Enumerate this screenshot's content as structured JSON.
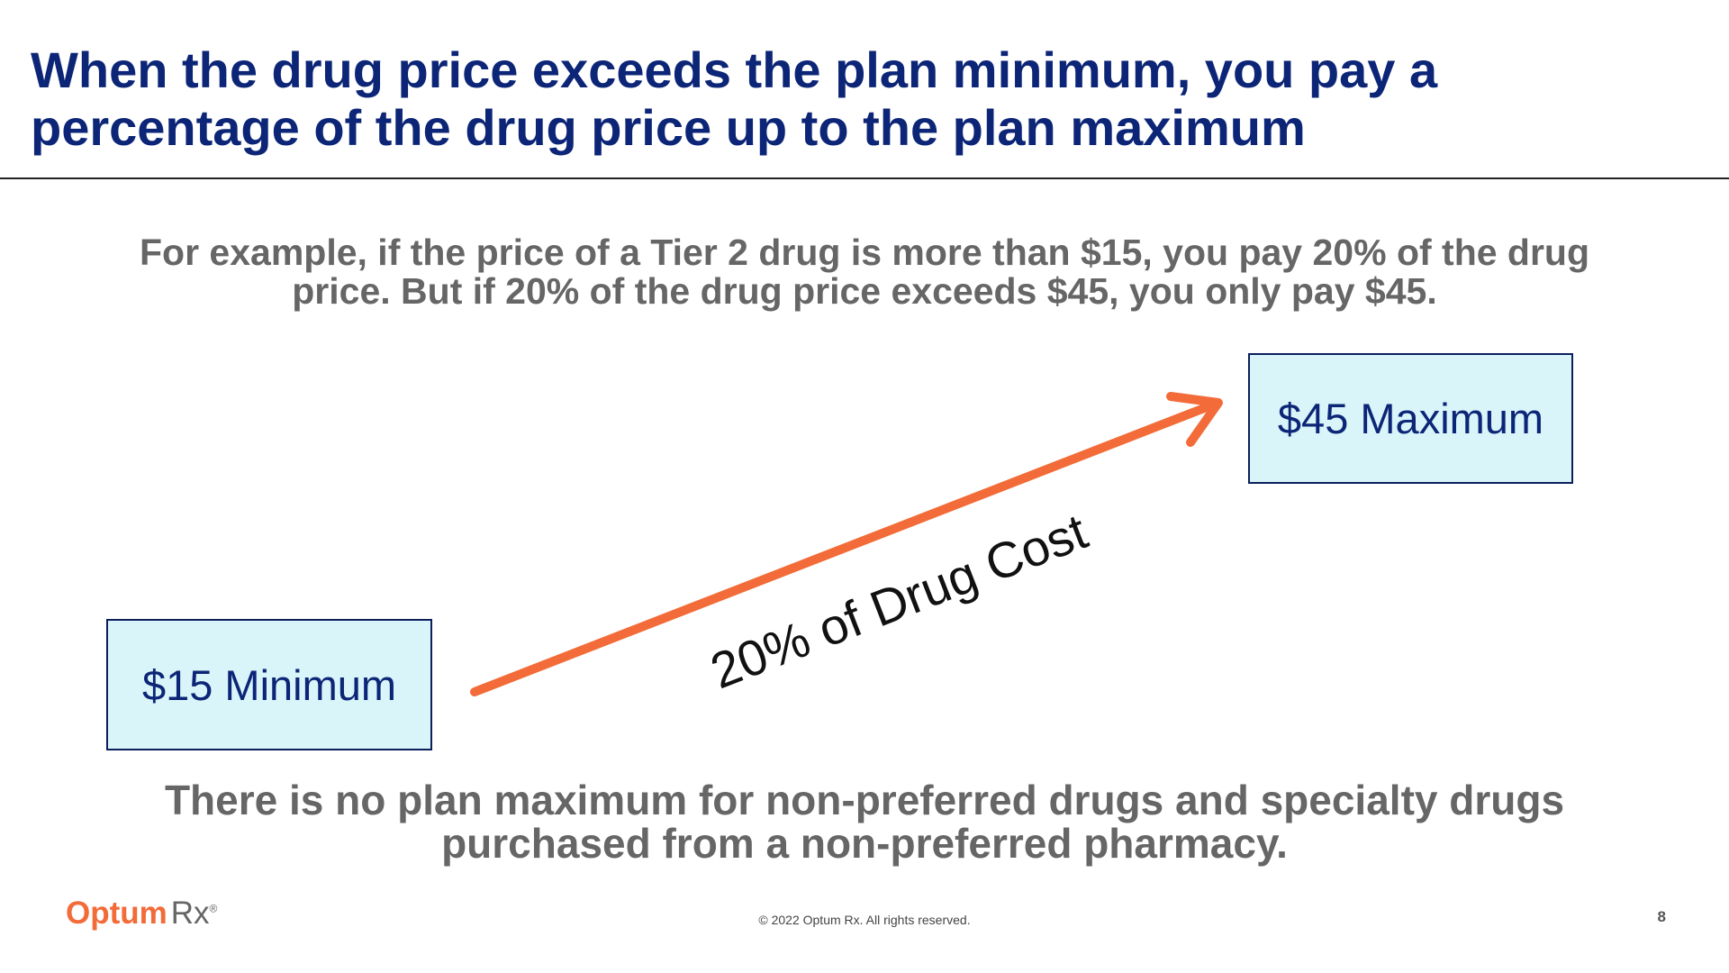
{
  "header": {
    "title_lines": [
      "When the drug price exceeds the plan minimum, you pay a",
      "percentage of the drug price up to the plan maximum"
    ]
  },
  "intro": {
    "lines": [
      "For example, if the price of a Tier 2 drug is more than $15, you pay 20% of the drug",
      "price. But if 20% of the drug price exceeds $45, you only pay $45."
    ]
  },
  "diagram": {
    "minimum_box": "$15 Minimum",
    "maximum_box": "$45 Maximum",
    "arrow_label": "20% of Drug Cost"
  },
  "note": {
    "lines": [
      "There is no plan maximum for non-preferred drugs and specialty drugs",
      "purchased from a non-preferred pharmacy."
    ]
  },
  "footer": {
    "logo": {
      "brand": "Optum",
      "product": "Rx",
      "mark": "®"
    },
    "copyright": "© 2022 Optum Rx. All rights reserved.",
    "page_number": "8"
  }
}
